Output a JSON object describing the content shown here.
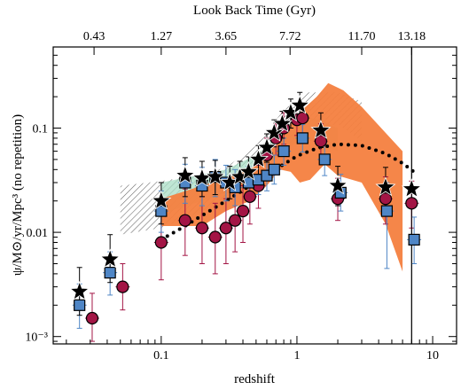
{
  "chart_data": {
    "type": "scatter",
    "title": "",
    "xlabel": "redshift",
    "ylabel": "ψ/M⊙/yr/Mpc³ (no repetition)",
    "top_axis_label": "Look Back Time (Gyr)",
    "x_scale": "log",
    "y_scale": "log",
    "xlim": [
      0.016,
      15
    ],
    "ylim": [
      0.00085,
      0.6
    ],
    "x_ticks": [
      {
        "value": 0.1,
        "label": "0.1"
      },
      {
        "value": 1,
        "label": "1"
      },
      {
        "value": 10,
        "label": "10"
      }
    ],
    "y_ticks": [
      {
        "value": 0.001,
        "label": "10⁻³"
      },
      {
        "value": 0.01,
        "label": "0.01"
      },
      {
        "value": 0.1,
        "label": "0.1"
      }
    ],
    "top_ticks": [
      {
        "z": 0.032,
        "label": "0.43"
      },
      {
        "z": 0.1,
        "label": "1.27"
      },
      {
        "z": 0.3,
        "label": "3.65"
      },
      {
        "z": 0.89,
        "label": "7.72"
      },
      {
        "z": 3.0,
        "label": "11.70"
      },
      {
        "z": 7.0,
        "label": "13.18"
      }
    ],
    "vertical_line_z": 7.0,
    "colors": {
      "stars": "#000000",
      "squares": "#4f86c6",
      "circles": "#a31545",
      "orange_band": "#f47f3f",
      "green_band": "#a9dec6",
      "hatched_band": "#555555",
      "dotted_curve": "#000000"
    },
    "series": [
      {
        "marker": "star",
        "points": [
          {
            "x": 0.025,
            "y": 0.0027,
            "lo": 0.0016,
            "hi": 0.0046
          },
          {
            "x": 0.042,
            "y": 0.0055,
            "lo": 0.0033,
            "hi": 0.0095
          },
          {
            "x": 0.1,
            "y": 0.02,
            "lo": 0.012,
            "hi": 0.03
          },
          {
            "x": 0.15,
            "y": 0.035,
            "lo": 0.022,
            "hi": 0.052
          },
          {
            "x": 0.2,
            "y": 0.033,
            "lo": 0.022,
            "hi": 0.048
          },
          {
            "x": 0.25,
            "y": 0.034,
            "lo": 0.023,
            "hi": 0.049
          },
          {
            "x": 0.32,
            "y": 0.03,
            "lo": 0.021,
            "hi": 0.043
          },
          {
            "x": 0.38,
            "y": 0.034,
            "lo": 0.024,
            "hi": 0.048
          },
          {
            "x": 0.44,
            "y": 0.038,
            "lo": 0.027,
            "hi": 0.053
          },
          {
            "x": 0.52,
            "y": 0.05,
            "lo": 0.036,
            "hi": 0.068
          },
          {
            "x": 0.6,
            "y": 0.065,
            "lo": 0.047,
            "hi": 0.088
          },
          {
            "x": 0.68,
            "y": 0.09,
            "lo": 0.066,
            "hi": 0.12
          },
          {
            "x": 0.78,
            "y": 0.11,
            "lo": 0.08,
            "hi": 0.145
          },
          {
            "x": 0.9,
            "y": 0.14,
            "lo": 0.1,
            "hi": 0.19
          },
          {
            "x": 1.05,
            "y": 0.165,
            "lo": 0.12,
            "hi": 0.22
          },
          {
            "x": 1.5,
            "y": 0.095,
            "lo": 0.065,
            "hi": 0.14
          },
          {
            "x": 2.0,
            "y": 0.028,
            "lo": 0.018,
            "hi": 0.043
          },
          {
            "x": 4.5,
            "y": 0.027,
            "lo": 0.016,
            "hi": 0.042
          },
          {
            "x": 7.0,
            "y": 0.026,
            "lo": 0.0007,
            "hi": 0.6
          }
        ]
      },
      {
        "marker": "square",
        "points": [
          {
            "x": 0.025,
            "y": 0.002,
            "lo": 0.0012,
            "hi": 0.0032
          },
          {
            "x": 0.042,
            "y": 0.0041,
            "lo": 0.0025,
            "hi": 0.0065
          },
          {
            "x": 0.1,
            "y": 0.016,
            "lo": 0.01,
            "hi": 0.025
          },
          {
            "x": 0.15,
            "y": 0.03,
            "lo": 0.019,
            "hi": 0.045
          },
          {
            "x": 0.2,
            "y": 0.028,
            "lo": 0.018,
            "hi": 0.042
          },
          {
            "x": 0.25,
            "y": 0.034,
            "lo": 0.022,
            "hi": 0.05
          },
          {
            "x": 0.3,
            "y": 0.03,
            "lo": 0.02,
            "hi": 0.044
          },
          {
            "x": 0.35,
            "y": 0.027,
            "lo": 0.018,
            "hi": 0.04
          },
          {
            "x": 0.44,
            "y": 0.03,
            "lo": 0.021,
            "hi": 0.043
          },
          {
            "x": 0.52,
            "y": 0.032,
            "lo": 0.023,
            "hi": 0.045
          },
          {
            "x": 0.6,
            "y": 0.035,
            "lo": 0.025,
            "hi": 0.049
          },
          {
            "x": 0.68,
            "y": 0.04,
            "lo": 0.029,
            "hi": 0.055
          },
          {
            "x": 0.8,
            "y": 0.06,
            "lo": 0.044,
            "hi": 0.08
          },
          {
            "x": 1.1,
            "y": 0.08,
            "lo": 0.059,
            "hi": 0.108
          },
          {
            "x": 1.6,
            "y": 0.05,
            "lo": 0.035,
            "hi": 0.072
          },
          {
            "x": 2.1,
            "y": 0.024,
            "lo": 0.016,
            "hi": 0.036
          },
          {
            "x": 4.6,
            "y": 0.016,
            "lo": 0.0045,
            "hi": 0.03
          },
          {
            "x": 7.3,
            "y": 0.0085,
            "lo": 0.005,
            "hi": 0.014
          }
        ]
      },
      {
        "marker": "circle",
        "points": [
          {
            "x": 0.031,
            "y": 0.0015,
            "lo": 0.0009,
            "hi": 0.0026
          },
          {
            "x": 0.052,
            "y": 0.003,
            "lo": 0.0018,
            "hi": 0.005
          },
          {
            "x": 0.1,
            "y": 0.008,
            "lo": 0.0035,
            "hi": 0.017
          },
          {
            "x": 0.15,
            "y": 0.013,
            "lo": 0.006,
            "hi": 0.026
          },
          {
            "x": 0.2,
            "y": 0.011,
            "lo": 0.005,
            "hi": 0.022
          },
          {
            "x": 0.25,
            "y": 0.009,
            "lo": 0.004,
            "hi": 0.019
          },
          {
            "x": 0.3,
            "y": 0.011,
            "lo": 0.005,
            "hi": 0.021
          },
          {
            "x": 0.35,
            "y": 0.013,
            "lo": 0.0065,
            "hi": 0.024
          },
          {
            "x": 0.4,
            "y": 0.016,
            "lo": 0.008,
            "hi": 0.028
          },
          {
            "x": 0.45,
            "y": 0.022,
            "lo": 0.012,
            "hi": 0.036
          },
          {
            "x": 0.52,
            "y": 0.028,
            "lo": 0.017,
            "hi": 0.044
          },
          {
            "x": 0.6,
            "y": 0.055,
            "lo": 0.035,
            "hi": 0.08
          },
          {
            "x": 0.7,
            "y": 0.08,
            "lo": 0.055,
            "hi": 0.11
          },
          {
            "x": 0.8,
            "y": 0.1,
            "lo": 0.07,
            "hi": 0.14
          },
          {
            "x": 1.0,
            "y": 0.12,
            "lo": 0.085,
            "hi": 0.165
          },
          {
            "x": 1.1,
            "y": 0.125,
            "lo": 0.09,
            "hi": 0.17
          },
          {
            "x": 1.5,
            "y": 0.075,
            "lo": 0.05,
            "hi": 0.11
          },
          {
            "x": 2.0,
            "y": 0.021,
            "lo": 0.013,
            "hi": 0.033
          },
          {
            "x": 4.5,
            "y": 0.021,
            "lo": 0.012,
            "hi": 0.034
          },
          {
            "x": 7.0,
            "y": 0.019,
            "lo": 0.011,
            "hi": 0.031
          }
        ]
      }
    ],
    "dotted_curve": [
      {
        "x": 0.1,
        "y": 0.0085
      },
      {
        "x": 0.15,
        "y": 0.0115
      },
      {
        "x": 0.2,
        "y": 0.0145
      },
      {
        "x": 0.3,
        "y": 0.02
      },
      {
        "x": 0.45,
        "y": 0.028
      },
      {
        "x": 0.6,
        "y": 0.036
      },
      {
        "x": 0.8,
        "y": 0.045
      },
      {
        "x": 1.0,
        "y": 0.054
      },
      {
        "x": 1.4,
        "y": 0.064
      },
      {
        "x": 2.0,
        "y": 0.07
      },
      {
        "x": 3.0,
        "y": 0.068
      },
      {
        "x": 4.5,
        "y": 0.057
      },
      {
        "x": 6.0,
        "y": 0.046
      },
      {
        "x": 7.5,
        "y": 0.037
      }
    ],
    "bands": [
      {
        "fill": "hatched",
        "lower": [
          {
            "x": 0.05,
            "y": 0.0095
          },
          {
            "x": 0.1,
            "y": 0.011
          },
          {
            "x": 0.2,
            "y": 0.016
          },
          {
            "x": 0.3,
            "y": 0.022
          },
          {
            "x": 0.5,
            "y": 0.033
          },
          {
            "x": 0.8,
            "y": 0.06
          },
          {
            "x": 1.2,
            "y": 0.095
          },
          {
            "x": 2.0,
            "y": 0.11
          },
          {
            "x": 3.0,
            "y": 0.075
          }
        ],
        "upper": [
          {
            "x": 0.05,
            "y": 0.028
          },
          {
            "x": 0.1,
            "y": 0.031
          },
          {
            "x": 0.2,
            "y": 0.036
          },
          {
            "x": 0.3,
            "y": 0.042
          },
          {
            "x": 0.5,
            "y": 0.068
          },
          {
            "x": 0.8,
            "y": 0.15
          },
          {
            "x": 1.2,
            "y": 0.22
          },
          {
            "x": 2.0,
            "y": 0.22
          },
          {
            "x": 3.0,
            "y": 0.18
          }
        ]
      },
      {
        "fill": "green",
        "lower": [
          {
            "x": 0.1,
            "y": 0.015
          },
          {
            "x": 0.2,
            "y": 0.02
          },
          {
            "x": 0.3,
            "y": 0.024
          },
          {
            "x": 0.5,
            "y": 0.035
          },
          {
            "x": 0.8,
            "y": 0.06
          },
          {
            "x": 1.1,
            "y": 0.08
          },
          {
            "x": 1.5,
            "y": 0.07
          },
          {
            "x": 2.0,
            "y": 0.06
          }
        ],
        "upper": [
          {
            "x": 0.1,
            "y": 0.03
          },
          {
            "x": 0.2,
            "y": 0.036
          },
          {
            "x": 0.3,
            "y": 0.04
          },
          {
            "x": 0.5,
            "y": 0.055
          },
          {
            "x": 0.8,
            "y": 0.095
          },
          {
            "x": 1.1,
            "y": 0.13
          },
          {
            "x": 1.5,
            "y": 0.12
          },
          {
            "x": 2.0,
            "y": 0.1
          }
        ]
      },
      {
        "fill": "orange",
        "lower": [
          {
            "x": 0.1,
            "y": 0.0115
          },
          {
            "x": 0.2,
            "y": 0.0115
          },
          {
            "x": 0.3,
            "y": 0.016
          },
          {
            "x": 0.45,
            "y": 0.02
          },
          {
            "x": 0.6,
            "y": 0.028
          },
          {
            "x": 0.75,
            "y": 0.04
          },
          {
            "x": 0.9,
            "y": 0.038
          },
          {
            "x": 1.05,
            "y": 0.03
          },
          {
            "x": 1.25,
            "y": 0.032
          },
          {
            "x": 1.6,
            "y": 0.045
          },
          {
            "x": 2.0,
            "y": 0.035
          },
          {
            "x": 3.0,
            "y": 0.03
          },
          {
            "x": 4.5,
            "y": 0.012
          },
          {
            "x": 6.0,
            "y": 0.0042
          }
        ],
        "upper": [
          {
            "x": 0.1,
            "y": 0.021
          },
          {
            "x": 0.2,
            "y": 0.028
          },
          {
            "x": 0.3,
            "y": 0.033
          },
          {
            "x": 0.45,
            "y": 0.04
          },
          {
            "x": 0.6,
            "y": 0.055
          },
          {
            "x": 0.75,
            "y": 0.08
          },
          {
            "x": 0.9,
            "y": 0.11
          },
          {
            "x": 1.1,
            "y": 0.15
          },
          {
            "x": 1.4,
            "y": 0.2
          },
          {
            "x": 1.7,
            "y": 0.27
          },
          {
            "x": 2.2,
            "y": 0.23
          },
          {
            "x": 3.0,
            "y": 0.16
          },
          {
            "x": 4.5,
            "y": 0.09
          },
          {
            "x": 6.0,
            "y": 0.06
          }
        ]
      }
    ]
  }
}
